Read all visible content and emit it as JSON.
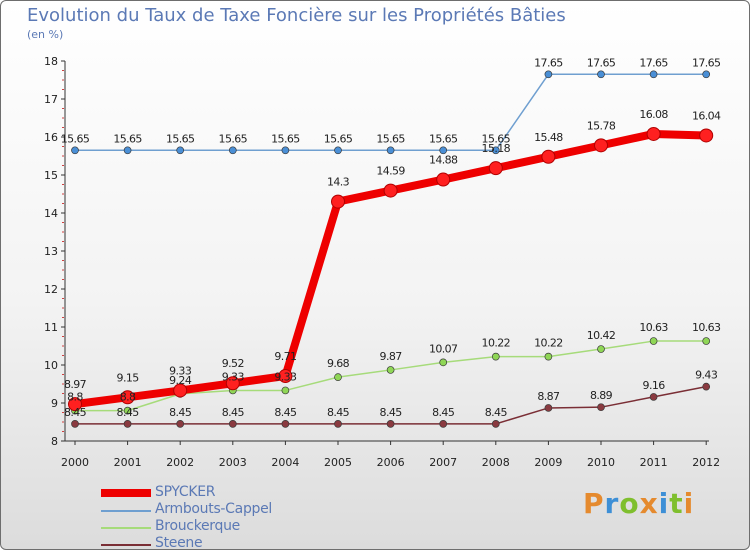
{
  "header": {
    "title": "Evolution du Taux de Taxe Foncière sur les Propriétés Bâties",
    "unit": "(en %)"
  },
  "logo": {
    "text": "Proxiti",
    "colors": [
      "#e58a2e",
      "#3d8fd6",
      "#7fbf2e",
      "#e58a2e",
      "#3d8fd6",
      "#7fbf2e",
      "#e58a2e"
    ]
  },
  "chart_data": {
    "type": "line",
    "title": "Evolution du Taux de Taxe Foncière sur les Propriétés Bâties",
    "ylabel": "(en %)",
    "xlabel": "",
    "ylim": [
      8,
      18
    ],
    "yticks": [
      "8",
      "9",
      "10",
      "11",
      "12",
      "13",
      "14",
      "15",
      "16",
      "17",
      "18"
    ],
    "grid": false,
    "legend_position": "bottom-left",
    "categories": [
      "2000",
      "2001",
      "2002",
      "2003",
      "2004",
      "2005",
      "2006",
      "2007",
      "2008",
      "2009",
      "2010",
      "2011",
      "2012"
    ],
    "series": [
      {
        "name": "SPYCKER",
        "color": "#ee0000",
        "marker_color": "#ff2020",
        "emphasis": true,
        "values": [
          8.97,
          9.15,
          9.33,
          9.52,
          9.71,
          14.3,
          14.59,
          14.88,
          15.18,
          15.48,
          15.78,
          16.08,
          16.04
        ],
        "labels": [
          "8.97",
          "9.15",
          "9.33",
          "9.52",
          "9.71",
          "14.3",
          "14.59",
          "14.88",
          "15.18",
          "15.48",
          "15.78",
          "16.08",
          "16.04"
        ]
      },
      {
        "name": "Armbouts-Cappel",
        "color": "#6f9fd0",
        "marker_color": "#4a8fd6",
        "values": [
          15.65,
          15.65,
          15.65,
          15.65,
          15.65,
          15.65,
          15.65,
          15.65,
          15.65,
          17.65,
          17.65,
          17.65,
          17.65
        ],
        "labels": [
          "15.65",
          "15.65",
          "15.65",
          "15.65",
          "15.65",
          "15.65",
          "15.65",
          "15.65",
          "15.65",
          "17.65",
          "17.65",
          "17.65",
          "17.65"
        ]
      },
      {
        "name": "Brouckerque",
        "color": "#a6db7a",
        "marker_color": "#8fd656",
        "values": [
          8.8,
          8.8,
          9.24,
          9.33,
          9.33,
          9.68,
          9.87,
          10.07,
          10.22,
          10.22,
          10.42,
          10.63,
          10.63
        ],
        "labels": [
          "8.8",
          "8.8",
          "9.24",
          "9.33",
          "9.33",
          "9.68",
          "9.87",
          "10.07",
          "10.22",
          "10.22",
          "10.42",
          "10.63",
          "10.63"
        ]
      },
      {
        "name": "Steene",
        "color": "#7a2e35",
        "marker_color": "#8a3a40",
        "values": [
          8.45,
          8.45,
          8.45,
          8.45,
          8.45,
          8.45,
          8.45,
          8.45,
          8.45,
          8.87,
          8.89,
          9.16,
          9.43
        ],
        "labels": [
          "8.45",
          "8.45",
          "8.45",
          "8.45",
          "8.45",
          "8.45",
          "8.45",
          "8.45",
          "8.45",
          "8.87",
          "8.89",
          "9.16",
          "9.43"
        ]
      }
    ]
  }
}
